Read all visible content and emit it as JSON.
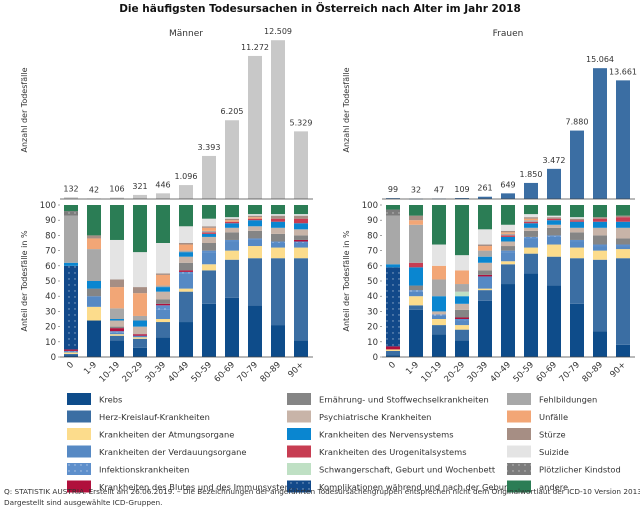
{
  "title": "Die häufigsten Todesursachen in Österreich nach Alter im Jahr 2018",
  "footer": {
    "line1": "Q: STATISTIK AUSTRIA. Erstellt am 26.06.2019. – Die Bezeichnungen der angeführten Todesursachengruppen entsprechen nicht dem Originalwortlaut der ICD-10 Version 2013. –",
    "line2": "Dargestellt sind ausgewählte ICD-Gruppen."
  },
  "chart_data": {
    "type": "bar",
    "categories": [
      "0",
      "1-9",
      "10-19",
      "20-29",
      "30-39",
      "40-49",
      "50-59",
      "60-69",
      "70-79",
      "80-89",
      "90+"
    ],
    "count_ylabel": "Anzahl der Todesfälle",
    "share_ylabel": "Anteil der Todesfälle in %",
    "share_ticks": [
      "0",
      "10",
      "20",
      "30",
      "40",
      "50",
      "60",
      "70",
      "80",
      "90",
      "100"
    ],
    "causes": [
      {
        "key": "K",
        "name": "Krebs",
        "color": "#0e4c8a"
      },
      {
        "key": "H",
        "name": "Herz-Kreislauf-Krankheiten",
        "color": "#3b6ea3"
      },
      {
        "key": "A",
        "name": "Krankheiten der Atmungsorgane",
        "color": "#fcdc8c"
      },
      {
        "key": "V",
        "name": "Krankheiten der Verdauungsorgane",
        "color": "#5689c4"
      },
      {
        "key": "I",
        "name": "Infektionskrankheiten",
        "color": "#5e8fcb",
        "pattern": true
      },
      {
        "key": "B",
        "name": "Krankheiten des Blutes und des Immunsystems",
        "color": "#b0103c"
      },
      {
        "key": "C",
        "name": "Komplikationen während und nach der Geburt",
        "color": "#12498a",
        "pattern": true
      },
      {
        "key": "E",
        "name": "Ernährung- und Stoffwechselkrankheiten",
        "color": "#858585"
      },
      {
        "key": "P",
        "name": "Psychiatrische Krankheiten",
        "color": "#c8b4a8"
      },
      {
        "key": "N",
        "name": "Krankheiten des Nervensystems",
        "color": "#0a86d0"
      },
      {
        "key": "U",
        "name": "Krankheiten des Urogenitalsystems",
        "color": "#c73d52"
      },
      {
        "key": "S",
        "name": "Schwangerschaft, Geburt und Wochenbett",
        "color": "#bfe0c4"
      },
      {
        "key": "F",
        "name": "Fehlbildungen",
        "color": "#a8a8a8"
      },
      {
        "key": "Un",
        "name": "Unfälle",
        "color": "#f2a676"
      },
      {
        "key": "St",
        "name": "Stürze",
        "color": "#a68e84"
      },
      {
        "key": "Su",
        "name": "Suizide",
        "color": "#e4e4e4"
      },
      {
        "key": "PK",
        "name": "Plötzlicher Kindstod",
        "color": "#7c7c7c",
        "pattern": true
      },
      {
        "key": "An",
        "name": "andere",
        "color": "#2b7d55"
      }
    ],
    "panels": [
      {
        "name": "Männer",
        "count_color": "#c8c8c8",
        "count_ylim": [
          0,
          13000
        ],
        "counts": [
          132,
          42,
          106,
          321,
          446,
          1096,
          3393,
          6205,
          11272,
          12509,
          5329
        ],
        "count_labels": [
          "132",
          "42",
          "106",
          "321",
          "446",
          "1.096",
          "3.393",
          "6.205",
          "11.272",
          "12.509",
          "5.329"
        ],
        "shares_percent": [
          {
            "K": 1,
            "H": 1,
            "A": 1,
            "I": 1,
            "B": 1,
            "C": 55,
            "N": 2,
            "F": 31,
            "PK": 3,
            "An": 4
          },
          {
            "K": 24,
            "A": 9,
            "V": 7,
            "E": 5,
            "N": 5,
            "F": 21,
            "Un": 7,
            "St": 2,
            "An": 20
          },
          {
            "K": 11,
            "H": 3,
            "A": 1,
            "V": 1,
            "I": 1,
            "B": 2,
            "E": 1,
            "P": 4,
            "N": 1,
            "F": 7,
            "Un": 14,
            "St": 5,
            "Su": 26,
            "An": 23
          },
          {
            "K": 6,
            "H": 6,
            "A": 1,
            "V": 1,
            "B": 1,
            "P": 5,
            "N": 4,
            "F": 3,
            "Un": 15,
            "St": 4,
            "Su": 23,
            "An": 31
          },
          {
            "K": 13,
            "H": 10,
            "A": 2,
            "V": 6,
            "I": 3,
            "B": 1,
            "E": 3,
            "P": 5,
            "N": 3,
            "F": 1,
            "Un": 7,
            "St": 1,
            "Su": 20,
            "An": 25
          },
          {
            "K": 23,
            "H": 20,
            "A": 2,
            "V": 10,
            "I": 1,
            "B": 1,
            "E": 5,
            "P": 4,
            "N": 3,
            "F": 1,
            "Un": 4,
            "St": 1,
            "Su": 11,
            "An": 14
          },
          {
            "K": 35,
            "H": 22,
            "A": 4,
            "V": 8,
            "I": 1,
            "E": 5,
            "P": 4,
            "N": 2,
            "U": 1,
            "F": 1,
            "Un": 2,
            "St": 1,
            "Su": 5,
            "An": 9
          },
          {
            "K": 39,
            "H": 25,
            "A": 6,
            "V": 6,
            "I": 1,
            "E": 5,
            "P": 3,
            "N": 3,
            "U": 1,
            "Un": 1,
            "St": 1,
            "Su": 1,
            "An": 8
          },
          {
            "K": 34,
            "H": 31,
            "A": 8,
            "V": 4,
            "I": 1,
            "E": 5,
            "P": 3,
            "N": 4,
            "U": 1,
            "Un": 1,
            "St": 1,
            "Su": 1,
            "An": 6
          },
          {
            "K": 21,
            "H": 44,
            "A": 7,
            "V": 3,
            "I": 1,
            "E": 5,
            "P": 4,
            "N": 4,
            "U": 2,
            "St": 2,
            "Su": 1,
            "An": 6
          },
          {
            "K": 11,
            "H": 54,
            "A": 7,
            "V": 3,
            "I": 1,
            "B": 1,
            "E": 3,
            "P": 4,
            "N": 4,
            "U": 3,
            "St": 2,
            "Su": 1,
            "An": 6
          }
        ]
      },
      {
        "name": "Frauen",
        "count_color": "#3b6ea3",
        "count_ylim": [
          0,
          19000
        ],
        "counts": [
          99,
          32,
          47,
          109,
          261,
          649,
          1850,
          3472,
          7880,
          15064,
          13661
        ],
        "count_labels": [
          "99",
          "32",
          "47",
          "109",
          "261",
          "649",
          "1.850",
          "3.472",
          "7.880",
          "15.064",
          "13.661"
        ],
        "shares_percent": [
          {
            "K": 1,
            "H": 3,
            "A": 1,
            "B": 2,
            "C": 52,
            "N": 2,
            "F": 32,
            "PK": 4,
            "An": 3
          },
          {
            "K": 31,
            "H": 3,
            "A": 6,
            "V": 3,
            "I": 1,
            "E": 3,
            "N": 12,
            "U": 3,
            "F": 25,
            "Un": 3,
            "St": 3,
            "An": 7
          },
          {
            "K": 15,
            "H": 6,
            "A": 4,
            "V": 2,
            "I": 1,
            "P": 2,
            "N": 10,
            "F": 11,
            "Un": 9,
            "Su": 14,
            "An": 26
          },
          {
            "K": 11,
            "H": 7,
            "A": 3,
            "V": 3,
            "I": 1,
            "B": 1,
            "E": 5,
            "P": 4,
            "N": 5,
            "S": 3,
            "F": 5,
            "Un": 9,
            "Su": 10,
            "An": 33
          },
          {
            "K": 37,
            "H": 7,
            "A": 1,
            "V": 8,
            "B": 1,
            "E": 3,
            "P": 5,
            "N": 4,
            "F": 4,
            "Un": 3,
            "St": 1,
            "Su": 10,
            "An": 16
          },
          {
            "K": 48,
            "H": 13,
            "A": 2,
            "V": 6,
            "I": 1,
            "E": 3,
            "P": 3,
            "N": 3,
            "U": 1,
            "F": 1,
            "Un": 1,
            "St": 1,
            "Su": 4,
            "An": 13
          },
          {
            "K": 55,
            "H": 13,
            "A": 4,
            "V": 6,
            "I": 1,
            "E": 4,
            "P": 2,
            "N": 3,
            "U": 1,
            "F": 1,
            "Un": 1,
            "St": 1,
            "Su": 2,
            "An": 6
          },
          {
            "K": 47,
            "H": 19,
            "A": 8,
            "V": 5,
            "I": 1,
            "E": 5,
            "P": 2,
            "N": 3,
            "U": 1,
            "St": 1,
            "Su": 1,
            "An": 7
          },
          {
            "K": 35,
            "H": 30,
            "A": 7,
            "V": 4,
            "I": 1,
            "E": 5,
            "P": 3,
            "N": 4,
            "U": 1,
            "St": 1,
            "Su": 1,
            "An": 8
          },
          {
            "K": 17,
            "H": 47,
            "A": 6,
            "V": 3,
            "I": 1,
            "E": 6,
            "P": 5,
            "N": 4,
            "U": 2,
            "St": 1,
            "An": 8
          },
          {
            "K": 8,
            "H": 57,
            "A": 6,
            "V": 2,
            "I": 1,
            "E": 4,
            "P": 7,
            "N": 4,
            "U": 3,
            "St": 1,
            "An": 7
          }
        ]
      }
    ]
  }
}
